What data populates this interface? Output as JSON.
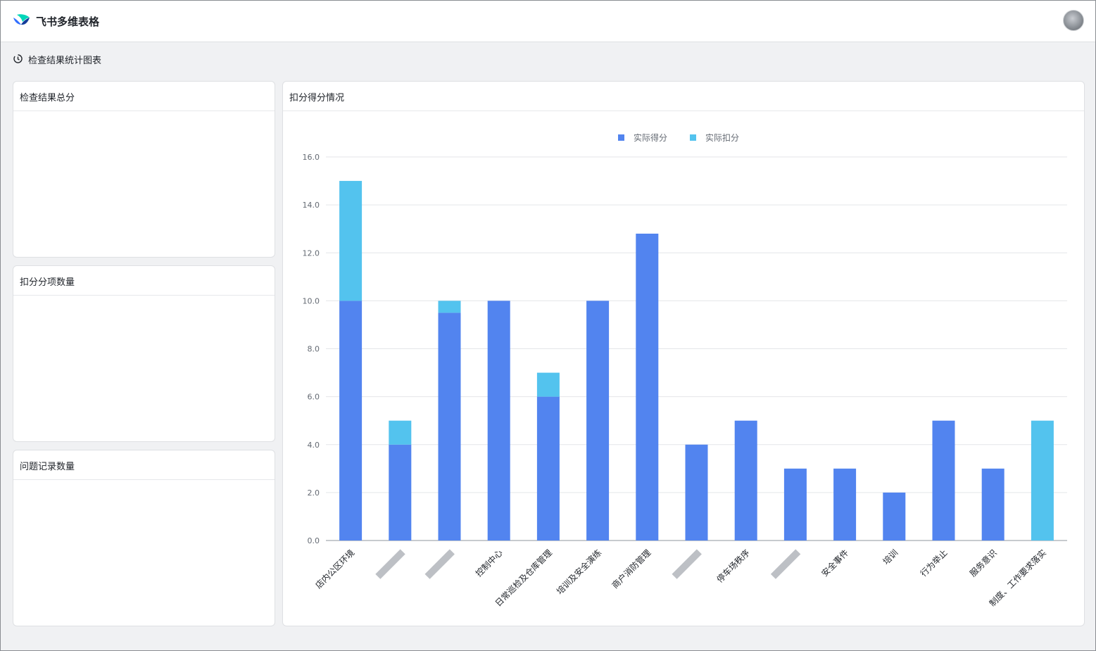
{
  "app": {
    "title": "飞书多维表格"
  },
  "dashboard": {
    "title": "检查结果统计图表"
  },
  "cards": {
    "total": {
      "title": "检查结果总分"
    },
    "count": {
      "title": "扣分分项数量"
    },
    "issues": {
      "title": "问题记录数量"
    },
    "chart": {
      "title": "扣分得分情况"
    }
  },
  "colors": {
    "score": "#5284ef",
    "deduction": "#53c3ee",
    "accent": "#3370ff"
  },
  "icons": {
    "logo": "feishu-bitable-logo",
    "dashboard": "dashboard-icon",
    "avatar": "user-avatar"
  },
  "chart_data": {
    "type": "bar",
    "stacked": true,
    "categories": [
      "店内公区环境",
      "",
      "",
      "控制中心",
      "日常巡检及仓库管理",
      "培训及安全演练",
      "商户消防管理",
      "",
      "停车场秩序",
      "",
      "安全事件",
      "培训",
      "行为举止",
      "服务意识",
      "制度、工作要求落实"
    ],
    "series": [
      {
        "name": "实际得分",
        "values": [
          10,
          4,
          9.5,
          10,
          6,
          10,
          12.8,
          4,
          5,
          3,
          3,
          2,
          5,
          3,
          0
        ],
        "color": "#5284ef"
      },
      {
        "name": "实际扣分",
        "values": [
          5,
          1,
          0.5,
          0,
          1,
          0,
          0,
          0,
          0,
          0,
          0,
          0,
          0,
          0,
          5
        ],
        "color": "#53c3ee"
      }
    ],
    "ylim": [
      0,
      16
    ],
    "yticks": [
      "0.0",
      "2.0",
      "4.0",
      "6.0",
      "8.0",
      "10.0",
      "12.0",
      "14.0",
      "16.0"
    ],
    "legend_position": "top-center",
    "grid": true
  }
}
